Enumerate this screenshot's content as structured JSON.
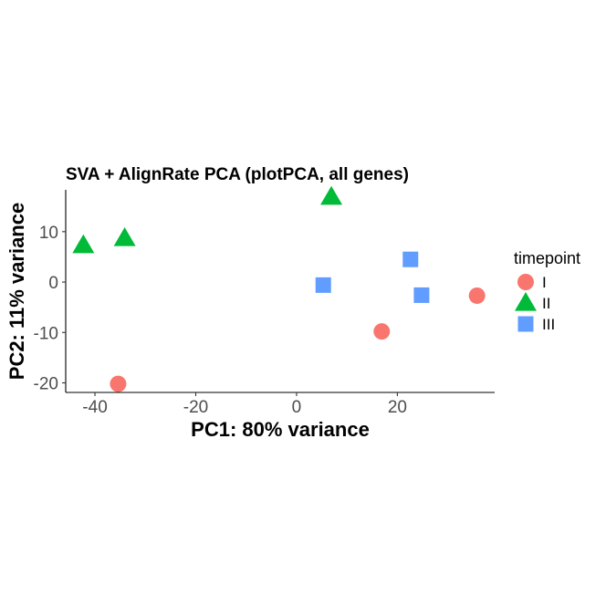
{
  "chart_data": {
    "type": "scatter",
    "title": "SVA + AlignRate PCA (plotPCA, all genes)",
    "xlabel": "PC1: 80% variance",
    "ylabel": "PC2: 11% variance",
    "xlim": [
      -45.8,
      39.3
    ],
    "ylim": [
      -21.9,
      18.3
    ],
    "xticks": [
      -40,
      -20,
      0,
      20
    ],
    "yticks": [
      -20,
      -10,
      0,
      10
    ],
    "grid": false,
    "legend": {
      "title": "timepoint",
      "position": "right"
    },
    "series": [
      {
        "name": "I",
        "marker": "circle",
        "color": "#F8766D",
        "points": [
          {
            "x": -35.4,
            "y": -20.2
          },
          {
            "x": 16.9,
            "y": -9.8
          },
          {
            "x": 35.8,
            "y": -2.7
          }
        ]
      },
      {
        "name": "II",
        "marker": "triangle",
        "color": "#00BA38",
        "points": [
          {
            "x": -42.3,
            "y": 7.3
          },
          {
            "x": -34.1,
            "y": 8.7
          },
          {
            "x": 6.9,
            "y": 16.9
          }
        ]
      },
      {
        "name": "III",
        "marker": "square",
        "color": "#619CFF",
        "points": [
          {
            "x": 5.3,
            "y": -0.6
          },
          {
            "x": 22.6,
            "y": 4.5
          },
          {
            "x": 24.8,
            "y": -2.6
          }
        ]
      }
    ]
  }
}
